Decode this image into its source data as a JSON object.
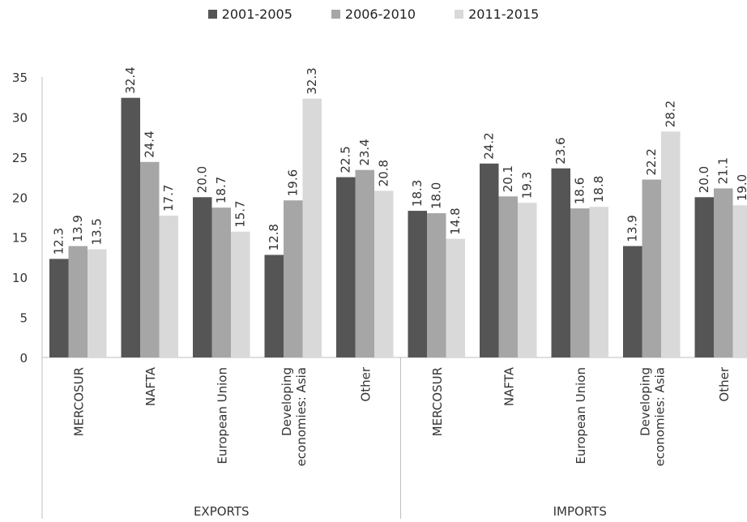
{
  "chart_data": {
    "type": "bar",
    "groups": [
      "EXPORTS",
      "IMPORTS"
    ],
    "categories": [
      "MERCOSUR",
      "NAFTA",
      "European Union",
      "Developing economies: Asia",
      "Other"
    ],
    "category_lines": [
      [
        "MERCOSUR"
      ],
      [
        "NAFTA"
      ],
      [
        "European Union"
      ],
      [
        "Developing",
        "economies: Asia"
      ],
      [
        "Other"
      ]
    ],
    "series": [
      {
        "name": "2001-2005",
        "color": "#555555",
        "values": {
          "EXPORTS": [
            12.3,
            32.4,
            20.0,
            12.8,
            22.5
          ],
          "IMPORTS": [
            18.3,
            24.2,
            23.6,
            13.9,
            20.0
          ]
        },
        "labels": {
          "EXPORTS": [
            "12.3",
            "32.4",
            "20.0",
            "12.8",
            "22.5"
          ],
          "IMPORTS": [
            "18.3",
            "24.2",
            "23.6",
            "13.9",
            "20.0"
          ]
        }
      },
      {
        "name": "2006-2010",
        "color": "#a6a6a6",
        "values": {
          "EXPORTS": [
            13.9,
            24.4,
            18.7,
            19.6,
            23.4
          ],
          "IMPORTS": [
            18.0,
            20.1,
            18.6,
            22.2,
            21.1
          ]
        },
        "labels": {
          "EXPORTS": [
            "13.9",
            "24.4",
            "18.7",
            "19.6",
            "23.4"
          ],
          "IMPORTS": [
            "18.0",
            "20.1",
            "18.6",
            "22.2",
            "21.1"
          ]
        }
      },
      {
        "name": "2011-2015",
        "color": "#d9d9d9",
        "values": {
          "EXPORTS": [
            13.5,
            17.7,
            15.7,
            32.3,
            20.8
          ],
          "IMPORTS": [
            14.8,
            19.3,
            18.8,
            28.2,
            19.0
          ]
        },
        "labels": {
          "EXPORTS": [
            "13.5",
            "17.7",
            "15.7",
            "32.3",
            "20.8"
          ],
          "IMPORTS": [
            "14.8",
            "19.3",
            "18.8",
            "28.2",
            "19.0"
          ]
        }
      }
    ],
    "y_ticks": [
      "0",
      "5",
      "10",
      "15",
      "20",
      "25",
      "30",
      "35"
    ],
    "ylim": [
      0,
      35
    ],
    "legend_position": "top-center",
    "grid": false
  }
}
